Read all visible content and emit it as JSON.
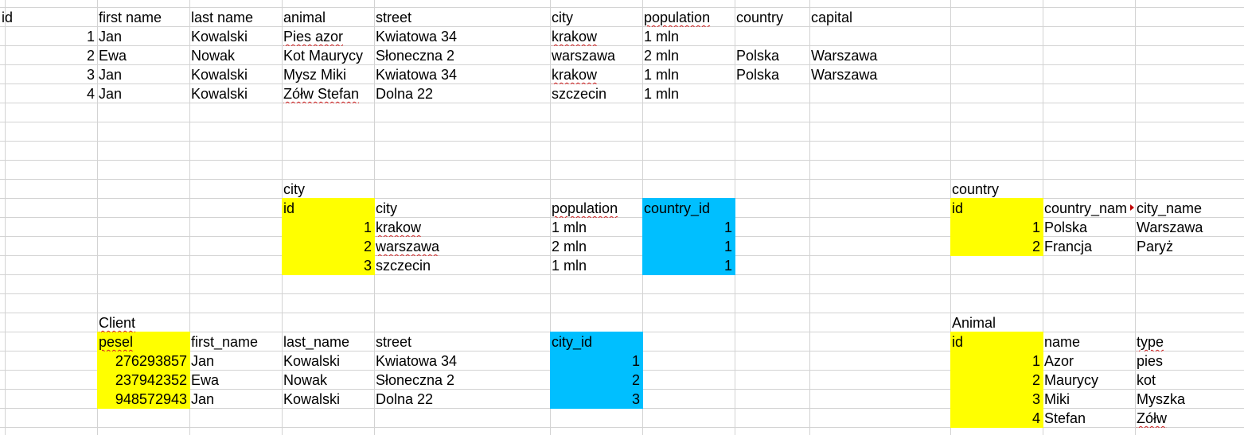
{
  "colors": {
    "yellow": "#ffff00",
    "blue": "#00bfff",
    "gridline": "#d3d3d3",
    "spellcheck": "#d02020"
  },
  "main_table": {
    "headers": [
      "id",
      "first name",
      "last name",
      "animal",
      "street",
      "city",
      "population",
      "country",
      "capital"
    ],
    "rows": [
      [
        "1",
        "Jan",
        "Kowalski",
        "Pies azor",
        "Kwiatowa 34",
        "krakow",
        "1 mln",
        "",
        ""
      ],
      [
        "2",
        "Ewa",
        "Nowak",
        "Kot Maurycy",
        "Słoneczna 2",
        "warszawa",
        "2 mln",
        "Polska",
        "Warszawa"
      ],
      [
        "3",
        "Jan",
        "Kowalski",
        "Mysz Miki",
        "Kwiatowa 34",
        "krakow",
        "1 mln",
        "Polska",
        "Warszawa"
      ],
      [
        "4",
        "Jan",
        "Kowalski",
        "Zółw Stefan",
        "Dolna 22",
        "szczecin",
        "1 mln",
        "",
        ""
      ]
    ]
  },
  "city_table": {
    "title": "city",
    "headers": [
      "id",
      "city",
      "population",
      "country_id"
    ],
    "rows": [
      [
        "1",
        "krakow",
        "1 mln",
        "1"
      ],
      [
        "2",
        "warszawa",
        "2 mln",
        "1"
      ],
      [
        "3",
        "szczecin",
        "1 mln",
        "1"
      ]
    ]
  },
  "country_table": {
    "title": "country",
    "headers": [
      "id",
      "country_nam",
      "city_name"
    ],
    "rows": [
      [
        "1",
        "Polska",
        "Warszawa"
      ],
      [
        "2",
        "Francja",
        "Paryż"
      ]
    ]
  },
  "client_table": {
    "title": "Client",
    "headers": [
      "pesel",
      "first_name",
      "last_name",
      "street",
      "city_id"
    ],
    "rows": [
      [
        "276293857",
        "Jan",
        "Kowalski",
        "Kwiatowa 34",
        "1"
      ],
      [
        "237942352",
        "Ewa",
        "Nowak",
        "Słoneczna 2",
        "2"
      ],
      [
        "948572943",
        "Jan",
        "Kowalski",
        "Dolna 22",
        "3"
      ]
    ]
  },
  "animal_table": {
    "title": "Animal",
    "headers": [
      "id",
      "name",
      "type"
    ],
    "rows": [
      [
        "1",
        "Azor",
        "pies"
      ],
      [
        "2",
        "Maurycy",
        "kot"
      ],
      [
        "3",
        "Miki",
        "Myszka"
      ],
      [
        "4",
        "Stefan",
        "Zółw"
      ]
    ]
  }
}
